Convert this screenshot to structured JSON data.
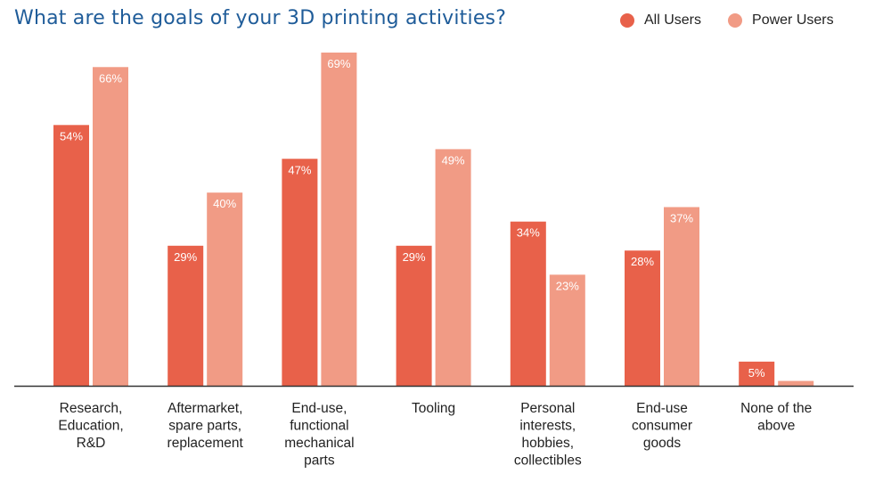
{
  "colors": {
    "all_users": "#e8614a",
    "power_users": "#f19b85",
    "title": "#1f5c99",
    "axis": "#333333"
  },
  "chart_data": {
    "type": "bar",
    "title": "What are the goals of your 3D printing activities?",
    "xlabel": "",
    "ylabel": "",
    "ylim": [
      0,
      70
    ],
    "grid": false,
    "legend_position": "top-right",
    "categories": [
      [
        "Research,",
        "Education,",
        "R&D"
      ],
      [
        "Aftermarket,",
        "spare parts,",
        "replacement"
      ],
      [
        "End-use,",
        "functional",
        "mechanical",
        "parts"
      ],
      [
        "Tooling"
      ],
      [
        "Personal",
        "interests,",
        "hobbies,",
        "collectibles"
      ],
      [
        "End-use",
        "consumer",
        "goods"
      ],
      [
        "None of the",
        "above"
      ]
    ],
    "series": [
      {
        "name": "All Users",
        "values": [
          54,
          29,
          47,
          29,
          34,
          28,
          5
        ]
      },
      {
        "name": "Power Users",
        "values": [
          66,
          40,
          69,
          49,
          23,
          37,
          1
        ]
      }
    ],
    "value_suffix": "%"
  }
}
